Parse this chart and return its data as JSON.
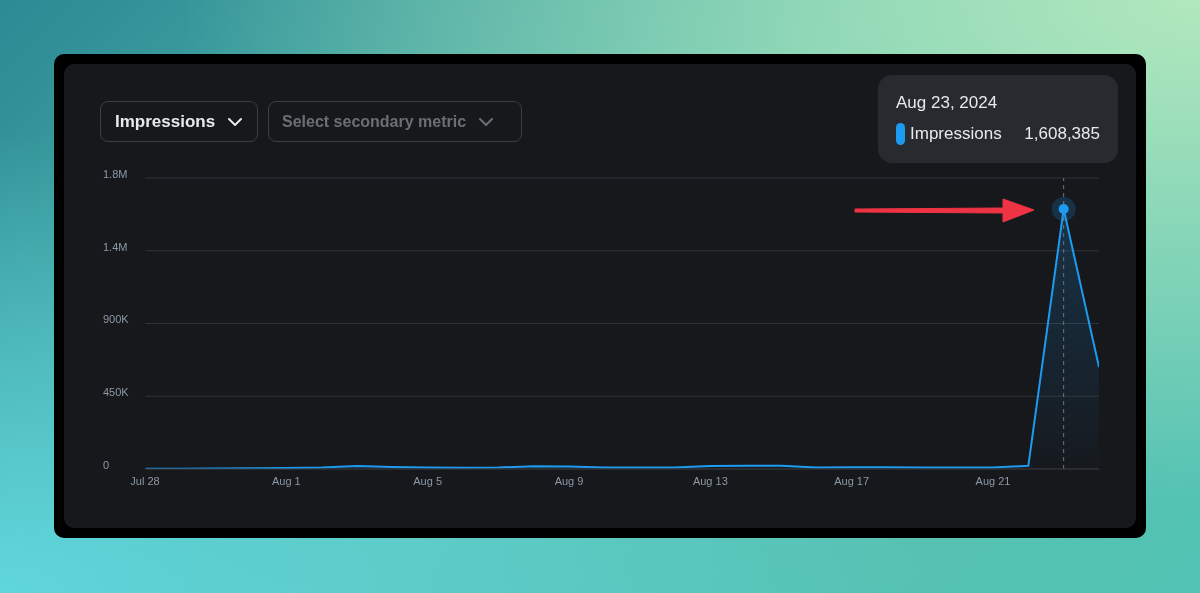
{
  "chart_data": {
    "type": "area",
    "title": "Impressions",
    "x": [
      "2024-07-28",
      "2024-07-29",
      "2024-07-30",
      "2024-07-31",
      "2024-08-01",
      "2024-08-02",
      "2024-08-03",
      "2024-08-04",
      "2024-08-05",
      "2024-08-06",
      "2024-08-07",
      "2024-08-08",
      "2024-08-09",
      "2024-08-10",
      "2024-08-11",
      "2024-08-12",
      "2024-08-13",
      "2024-08-14",
      "2024-08-15",
      "2024-08-16",
      "2024-08-17",
      "2024-08-18",
      "2024-08-19",
      "2024-08-20",
      "2024-08-21",
      "2024-08-22",
      "2024-08-23",
      "2024-08-24"
    ],
    "series": [
      {
        "name": "Impressions",
        "color": "#1d9bf0",
        "values": [
          2000,
          2000,
          3000,
          4000,
          6000,
          9000,
          18000,
          13000,
          9000,
          8000,
          9000,
          17000,
          15000,
          9000,
          9000,
          10000,
          18000,
          20000,
          20000,
          10000,
          11000,
          11000,
          10000,
          9000,
          9000,
          20000,
          1608385,
          630000
        ]
      }
    ],
    "xlim": [
      "2024-07-28",
      "2024-08-24"
    ],
    "xticks": [
      {
        "value": "2024-07-28",
        "label": "Jul 28"
      },
      {
        "value": "2024-08-01",
        "label": "Aug 1"
      },
      {
        "value": "2024-08-05",
        "label": "Aug 5"
      },
      {
        "value": "2024-08-09",
        "label": "Aug 9"
      },
      {
        "value": "2024-08-13",
        "label": "Aug 13"
      },
      {
        "value": "2024-08-17",
        "label": "Aug 17"
      },
      {
        "value": "2024-08-21",
        "label": "Aug 21"
      }
    ],
    "ylim": [
      0,
      1800000
    ],
    "yticks": [
      {
        "value": 0,
        "label": "0"
      },
      {
        "value": 450000,
        "label": "450K"
      },
      {
        "value": 900000,
        "label": "900K"
      },
      {
        "value": 1350000,
        "label": "1.4M"
      },
      {
        "value": 1800000,
        "label": "1.8M"
      }
    ],
    "grid": "y",
    "legend": "top right",
    "marker": "none",
    "line_style": "solid",
    "ref_lines": [
      {
        "axis": "x",
        "value": "2024-08-23",
        "color": "#71767b",
        "line_style": "dashed"
      }
    ],
    "annotations": [
      "Select secondary metric",
      "Aug 23, 2024",
      "1,608,385"
    ]
  }
}
